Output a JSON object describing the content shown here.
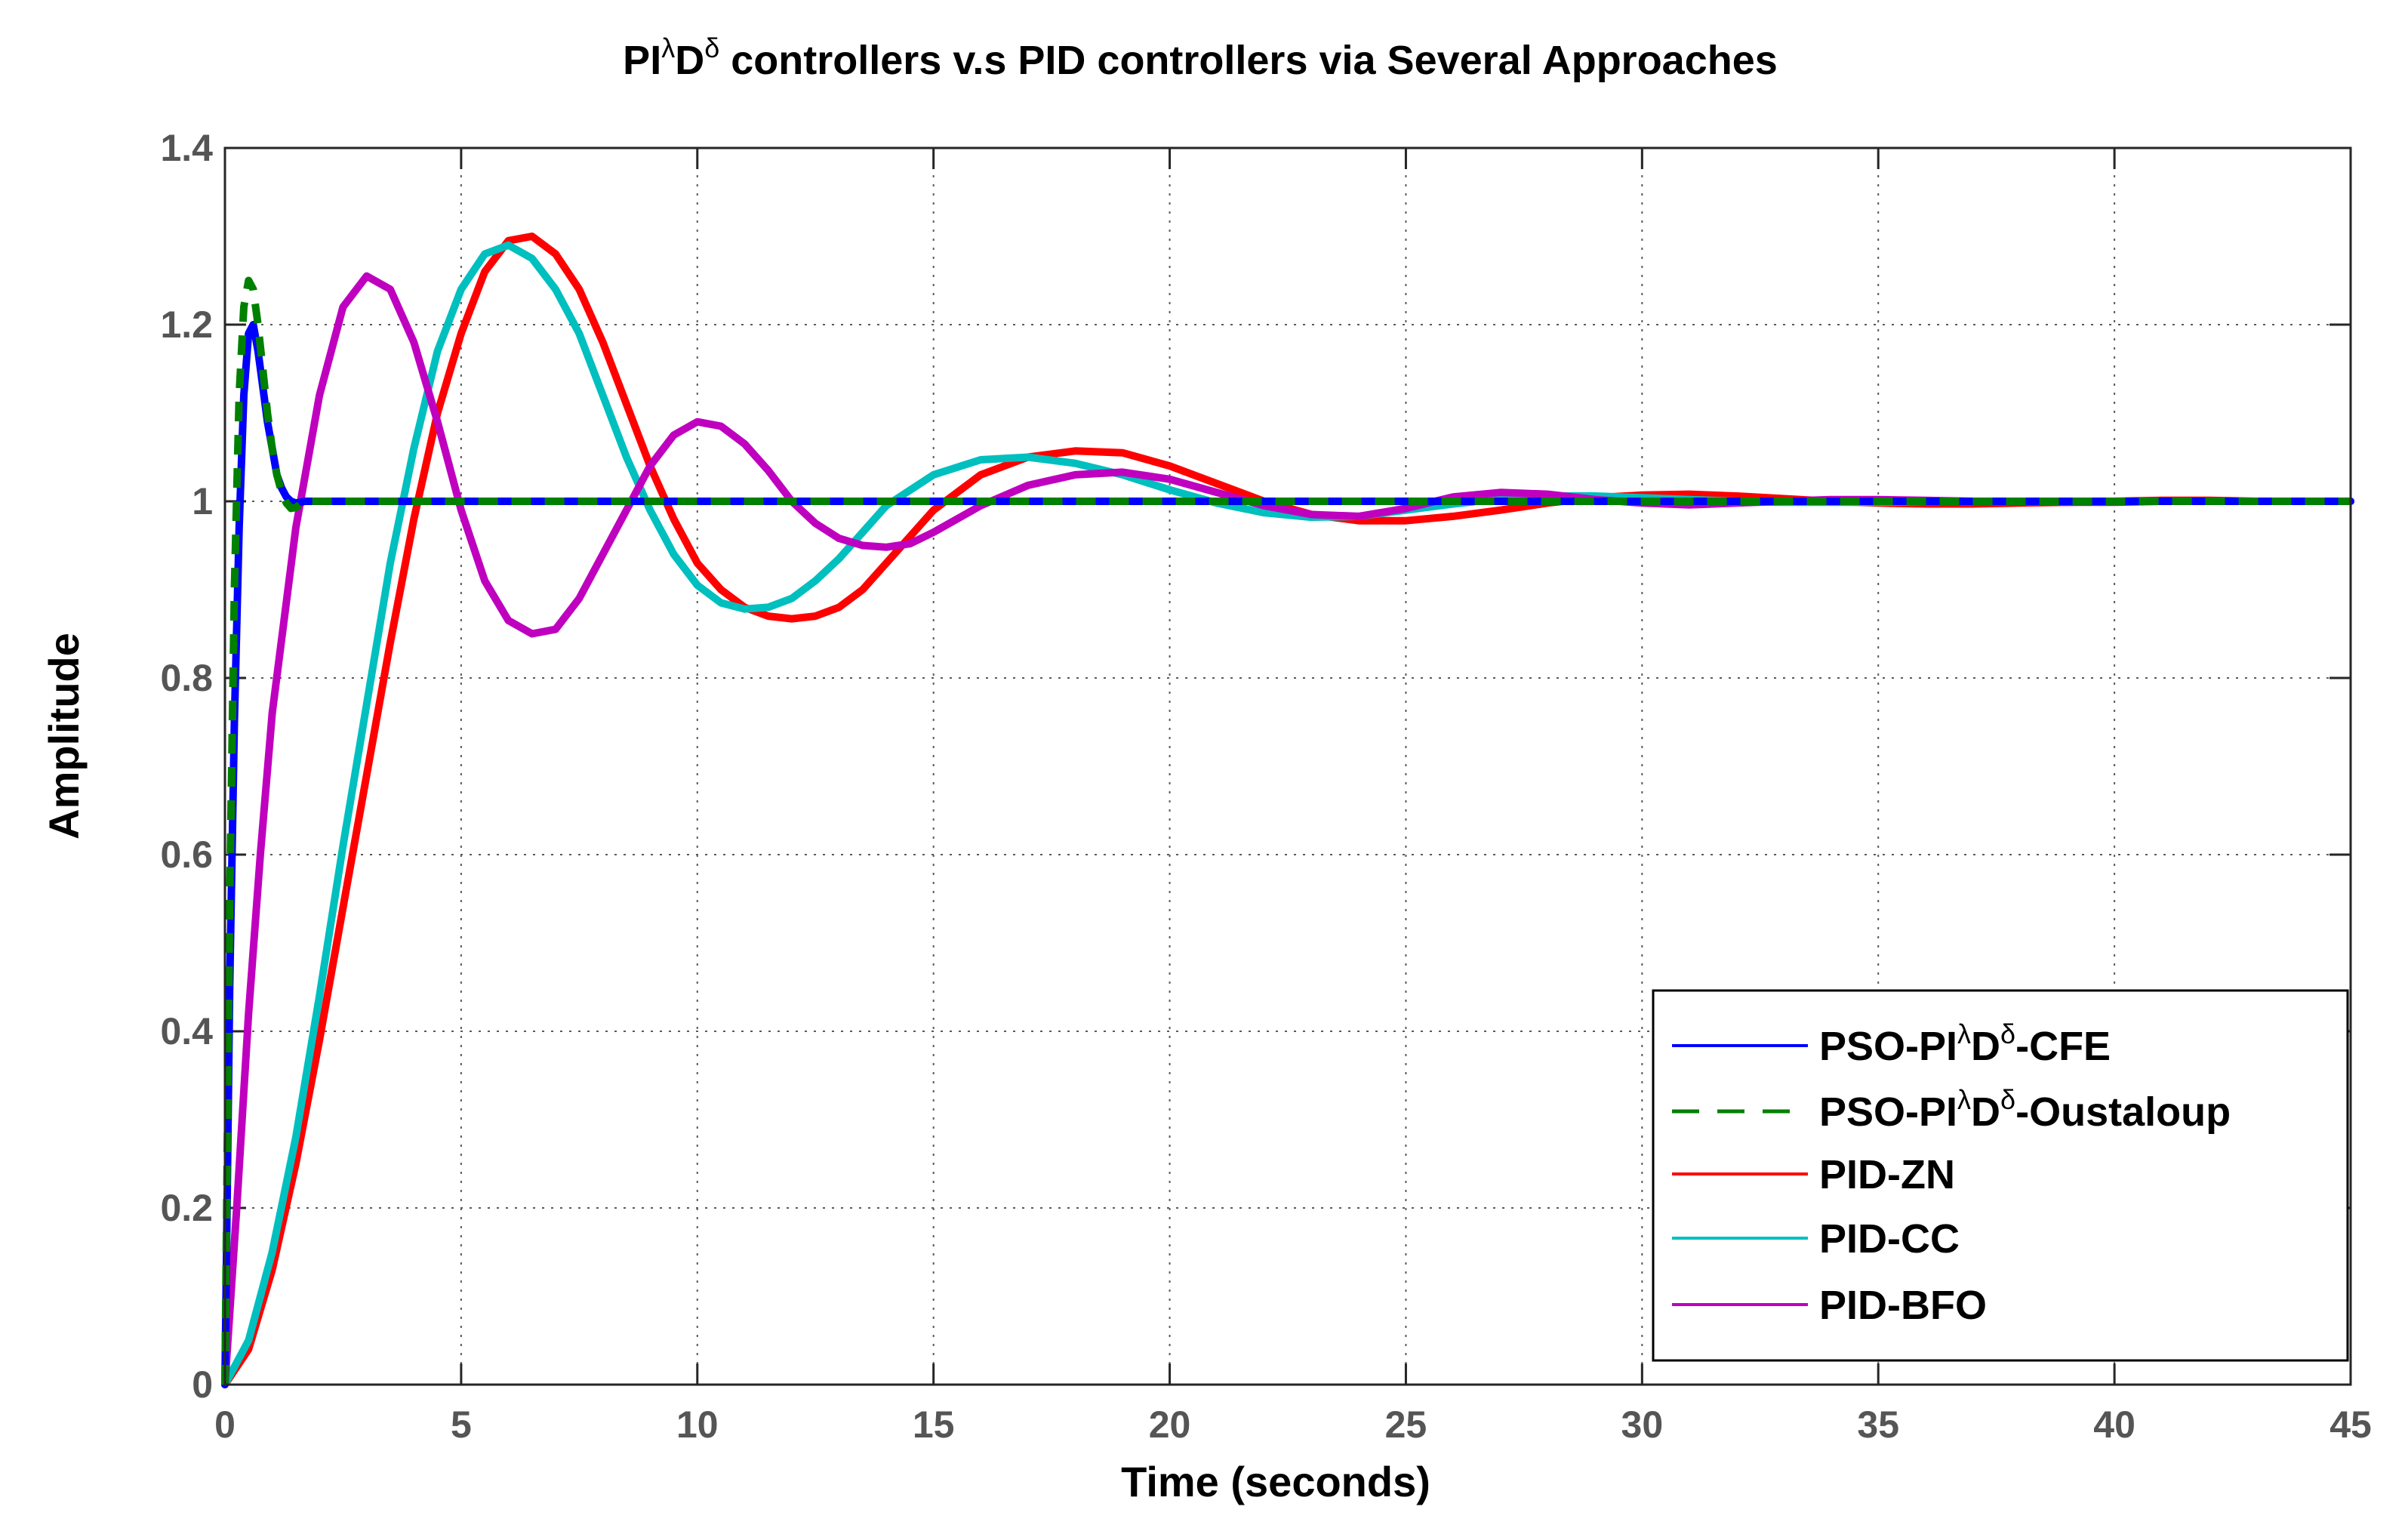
{
  "chart_data": {
    "type": "line",
    "title": {
      "prefix": "PI",
      "sup1": "λ",
      "mid": "D",
      "sup2": "δ",
      "suffix": " controllers v.s PID controllers via Several Approaches"
    },
    "xlabel": "Time (seconds)",
    "ylabel": "Amplitude",
    "xlim": [
      0,
      45
    ],
    "ylim": [
      0,
      1.4
    ],
    "xticks": [
      0,
      5,
      10,
      15,
      20,
      25,
      30,
      35,
      40,
      45
    ],
    "yticks": [
      0,
      0.2,
      0.4,
      0.6,
      0.8,
      1,
      1.2,
      1.4
    ],
    "xtick_labels": [
      "0",
      "5",
      "10",
      "15",
      "20",
      "25",
      "30",
      "35",
      "40",
      "45"
    ],
    "ytick_labels": [
      "0",
      "0.2",
      "0.4",
      "0.6",
      "0.8",
      "1",
      "1.2",
      "1.4"
    ],
    "grid": true,
    "legend_position": "bottom-right",
    "series": [
      {
        "name": "PSO-PIλDδ-CFE",
        "label": {
          "prefix": "PSO-PI",
          "sup1": "λ",
          "mid": "D",
          "sup2": "δ",
          "suffix": "-CFE"
        },
        "color": "#0000ff",
        "dash": "solid",
        "x": [
          0,
          0.1,
          0.2,
          0.3,
          0.4,
          0.5,
          0.6,
          0.7,
          0.8,
          0.9,
          1.0,
          1.1,
          1.2,
          1.3,
          1.4,
          1.5,
          1.7,
          2.0,
          3,
          5,
          10,
          20,
          30,
          45
        ],
        "y": [
          0,
          0.45,
          0.75,
          0.97,
          1.12,
          1.19,
          1.2,
          1.17,
          1.13,
          1.09,
          1.06,
          1.03,
          1.015,
          1.005,
          1.0,
          0.998,
          1.0,
          1.0,
          1.0,
          1.0,
          1.0,
          1.0,
          1.0,
          1.0
        ]
      },
      {
        "name": "PSO-PIλDδ-Oustaloup",
        "label": {
          "prefix": "PSO-PI",
          "sup1": "λ",
          "mid": "D",
          "sup2": "δ",
          "suffix": "-Oustaloup"
        },
        "color": "#008000",
        "dash": "dashed",
        "x": [
          0,
          0.1,
          0.2,
          0.3,
          0.4,
          0.5,
          0.6,
          0.7,
          0.8,
          0.9,
          1.0,
          1.1,
          1.2,
          1.3,
          1.4,
          1.5,
          1.6,
          1.7,
          1.8,
          2.0,
          3,
          5,
          10,
          20,
          30,
          45
        ],
        "y": [
          0,
          0.55,
          0.9,
          1.12,
          1.22,
          1.25,
          1.24,
          1.2,
          1.15,
          1.1,
          1.06,
          1.03,
          1.01,
          0.998,
          0.992,
          0.993,
          0.997,
          1.0,
          1.0,
          1.0,
          1.0,
          1.0,
          1.0,
          1.0,
          1.0,
          1.0
        ]
      },
      {
        "name": "PID-ZN",
        "label": {
          "prefix": "PID-ZN"
        },
        "color": "#ff0000",
        "dash": "solid",
        "x": [
          0,
          0.5,
          1,
          1.5,
          2,
          2.5,
          3,
          3.5,
          4,
          4.5,
          5,
          5.5,
          6,
          6.5,
          7,
          7.5,
          8,
          8.5,
          9,
          9.5,
          10,
          10.5,
          11,
          11.5,
          12,
          12.5,
          13,
          13.5,
          14,
          15,
          16,
          17,
          18,
          19,
          20,
          21,
          22,
          23,
          24,
          25,
          26,
          27,
          28,
          29,
          30,
          31,
          32,
          33,
          34,
          35,
          36,
          37,
          38,
          39,
          40,
          41,
          42,
          43,
          44,
          45
        ],
        "y": [
          0,
          0.04,
          0.13,
          0.25,
          0.39,
          0.54,
          0.69,
          0.84,
          0.98,
          1.1,
          1.19,
          1.26,
          1.295,
          1.3,
          1.28,
          1.24,
          1.18,
          1.11,
          1.04,
          0.98,
          0.93,
          0.9,
          0.88,
          0.87,
          0.867,
          0.87,
          0.88,
          0.9,
          0.93,
          0.99,
          1.03,
          1.05,
          1.057,
          1.055,
          1.04,
          1.02,
          1.0,
          0.985,
          0.978,
          0.978,
          0.983,
          0.99,
          0.998,
          1.004,
          1.007,
          1.008,
          1.006,
          1.003,
          1.0,
          0.998,
          0.997,
          0.997,
          0.998,
          0.999,
          1.0,
          1.001,
          1.001,
          1.0,
          1.0,
          1.0
        ]
      },
      {
        "name": "PID-CC",
        "label": {
          "prefix": "PID-CC"
        },
        "color": "#00bfbf",
        "dash": "solid",
        "x": [
          0,
          0.5,
          1,
          1.5,
          2,
          2.5,
          3,
          3.5,
          4,
          4.5,
          5,
          5.5,
          6,
          6.5,
          7,
          7.5,
          8,
          8.5,
          9,
          9.5,
          10,
          10.5,
          11,
          11.5,
          12,
          12.5,
          13,
          13.5,
          14,
          15,
          16,
          17,
          18,
          19,
          20,
          21,
          22,
          23,
          24,
          25,
          26,
          27,
          28,
          29,
          30,
          31,
          32,
          33,
          34,
          35,
          36,
          37,
          38,
          39,
          40,
          41,
          42,
          43,
          44,
          45
        ],
        "y": [
          0,
          0.05,
          0.15,
          0.28,
          0.44,
          0.61,
          0.77,
          0.93,
          1.06,
          1.17,
          1.24,
          1.28,
          1.29,
          1.275,
          1.24,
          1.19,
          1.12,
          1.05,
          0.99,
          0.94,
          0.905,
          0.885,
          0.878,
          0.88,
          0.89,
          0.91,
          0.935,
          0.965,
          0.995,
          1.03,
          1.047,
          1.05,
          1.043,
          1.03,
          1.013,
          0.998,
          0.987,
          0.982,
          0.983,
          0.99,
          0.997,
          1.003,
          1.006,
          1.006,
          1.004,
          1.002,
          1.0,
          0.999,
          0.999,
          0.999,
          1.0,
          1.0,
          1.0,
          1.0,
          1.0,
          1.0,
          1.0,
          1.0,
          1.0,
          1.0
        ]
      },
      {
        "name": "PID-BFO",
        "label": {
          "prefix": "PID-BFO"
        },
        "color": "#bf00bf",
        "dash": "solid",
        "x": [
          0,
          0.25,
          0.5,
          0.75,
          1,
          1.5,
          2,
          2.5,
          3,
          3.5,
          4,
          4.5,
          5,
          5.5,
          6,
          6.5,
          7,
          7.5,
          8,
          8.5,
          9,
          9.5,
          10,
          10.5,
          11,
          11.5,
          12,
          12.5,
          13,
          13.5,
          14,
          14.5,
          15,
          15.5,
          16,
          17,
          18,
          19,
          20,
          21,
          22,
          23,
          24,
          25,
          26,
          27,
          28,
          29,
          30,
          31,
          32,
          33,
          34,
          35,
          36,
          37,
          38,
          39,
          40,
          41,
          42,
          43,
          44,
          45
        ],
        "y": [
          0,
          0.2,
          0.42,
          0.6,
          0.76,
          0.97,
          1.12,
          1.22,
          1.255,
          1.24,
          1.18,
          1.09,
          0.99,
          0.91,
          0.865,
          0.85,
          0.855,
          0.89,
          0.94,
          0.99,
          1.04,
          1.075,
          1.09,
          1.085,
          1.065,
          1.035,
          1.0,
          0.975,
          0.958,
          0.95,
          0.948,
          0.952,
          0.965,
          0.98,
          0.995,
          1.018,
          1.03,
          1.033,
          1.025,
          1.01,
          0.995,
          0.985,
          0.983,
          0.992,
          1.005,
          1.01,
          1.008,
          1.002,
          0.998,
          0.996,
          0.998,
          1.0,
          1.002,
          1.002,
          1.001,
          1.0,
          1.0,
          0.999,
          0.999,
          1.0,
          1.0,
          1.0,
          1.0,
          1.0
        ]
      }
    ]
  }
}
